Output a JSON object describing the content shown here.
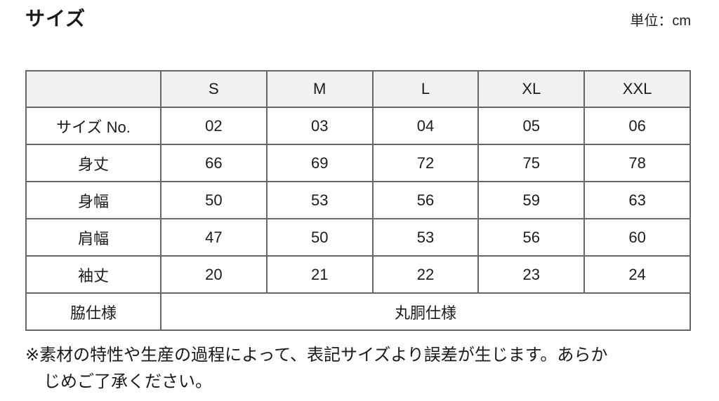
{
  "header": {
    "title": "サイズ",
    "unit": "単位：cm"
  },
  "size_table": {
    "columns": [
      "",
      "S",
      "M",
      "L",
      "XL",
      "XXL"
    ],
    "rows": [
      {
        "label": "サイズ No.",
        "values": [
          "02",
          "03",
          "04",
          "05",
          "06"
        ]
      },
      {
        "label": "身丈",
        "values": [
          "66",
          "69",
          "72",
          "75",
          "78"
        ]
      },
      {
        "label": "身幅",
        "values": [
          "50",
          "53",
          "56",
          "59",
          "63"
        ]
      },
      {
        "label": "肩幅",
        "values": [
          "47",
          "50",
          "53",
          "56",
          "60"
        ]
      },
      {
        "label": "袖丈",
        "values": [
          "20",
          "21",
          "22",
          "23",
          "24"
        ]
      },
      {
        "label": "脇仕様",
        "span_value": "丸胴仕様"
      }
    ]
  },
  "note": {
    "line1": "※素材の特性や生産の過程によって、表記サイズより誤差が生じます。あらか",
    "line2": "じめご了承ください。"
  },
  "colors": {
    "table_border": "#666666",
    "header_row_bg": "#f1f1f1",
    "text": "#1a1a1a",
    "background": "#ffffff"
  }
}
